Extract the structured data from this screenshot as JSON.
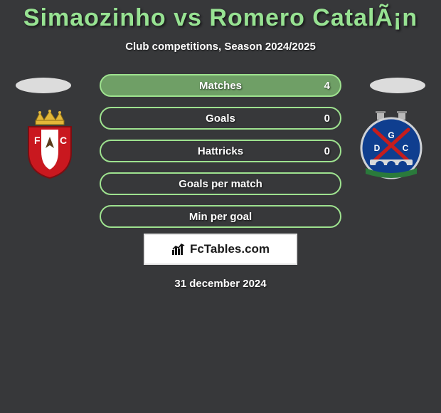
{
  "title": "Simaozinho vs Romero CatalÃ¡n",
  "subtitle": "Club competitions, Season 2024/2025",
  "colors": {
    "background": "#37383a",
    "title_color": "#97e292",
    "stat_border": "#9ee28f",
    "stat_fill_accent": "#6f9f66",
    "flag_oval": "#dcdcdc",
    "site_badge_bg": "#ffffff",
    "site_badge_border": "#e5e5e5",
    "site_text": "#1a1a1a"
  },
  "stats": [
    {
      "label": "Matches",
      "value": "4",
      "fill_pct": 100,
      "show_value": true
    },
    {
      "label": "Goals",
      "value": "0",
      "fill_pct": 0,
      "show_value": true
    },
    {
      "label": "Hattricks",
      "value": "0",
      "fill_pct": 0,
      "show_value": true
    },
    {
      "label": "Goals per match",
      "value": "",
      "fill_pct": 0,
      "show_value": false
    },
    {
      "label": "Min per goal",
      "value": "",
      "fill_pct": 0,
      "show_value": false
    }
  ],
  "site_brand": "FcTables.com",
  "date": "31 december 2024",
  "left_club": {
    "name": "FC Penafiel-style crest",
    "crown_color": "#e3b739",
    "shield_fill": "#c9181f",
    "shield_inner": "#ffffff"
  },
  "right_club": {
    "name": "GD Chaves-style crest",
    "circle_fill": "#0f3e8f",
    "accent": "#c51d1d",
    "bridge": "#d9dadb",
    "water": "#2a7a3b"
  }
}
